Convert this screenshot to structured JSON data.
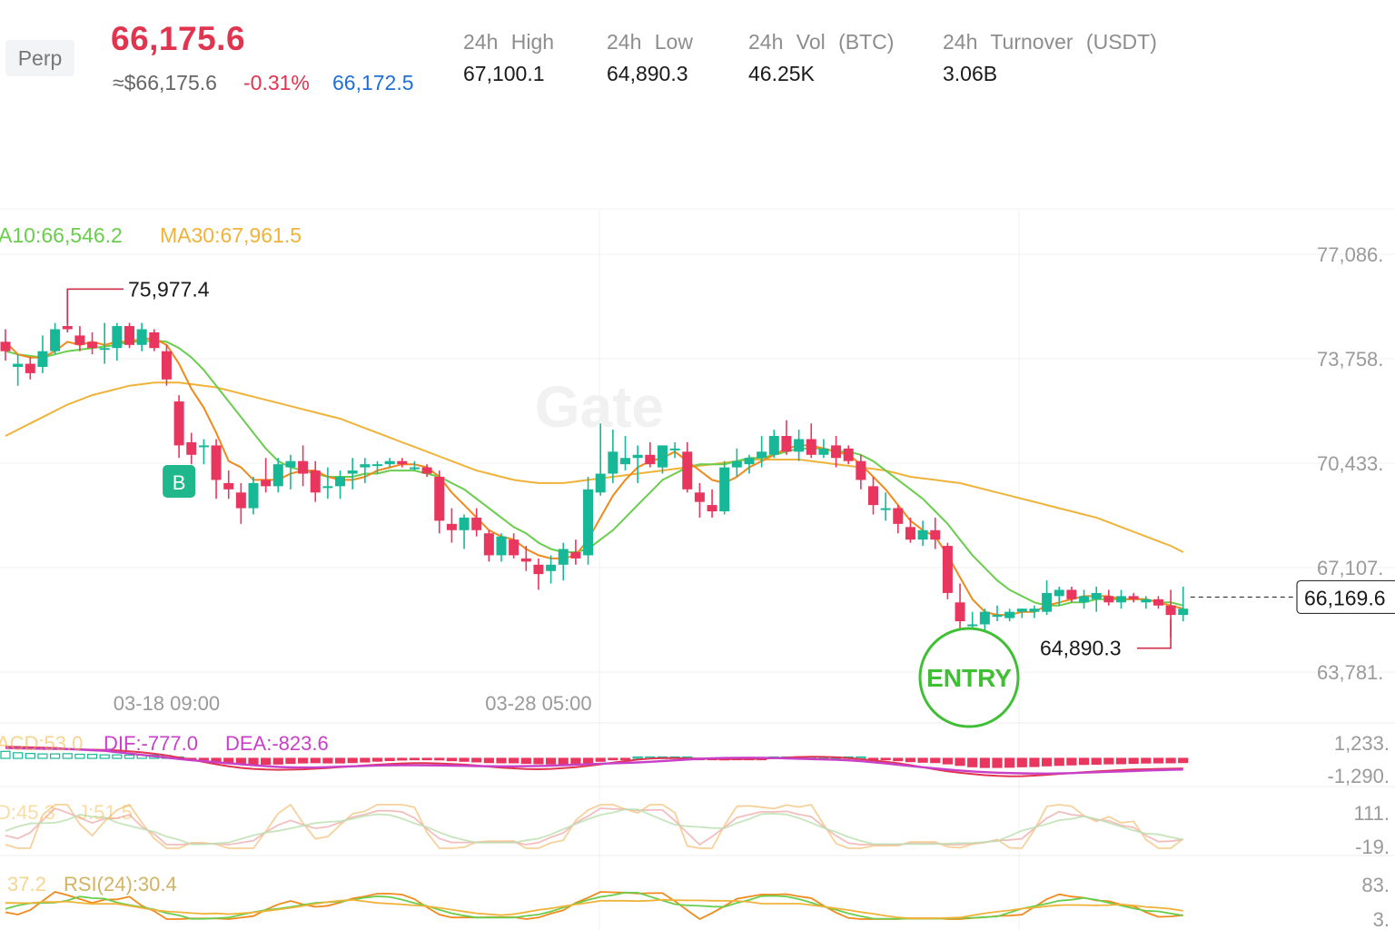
{
  "header": {
    "badge": "Perp",
    "last_price": "66,175.6",
    "usd_value": "≈$66,175.6",
    "change_pct": "-0.31%",
    "mark_price": "66,172.5",
    "stats": [
      {
        "label": "24h High",
        "value": "67,100.1"
      },
      {
        "label": "24h Low",
        "value": "64,890.3"
      },
      {
        "label": "24h Vol (BTC)",
        "value": "46.25K"
      },
      {
        "label": "24h Turnover (USDT)",
        "value": "3.06B"
      }
    ]
  },
  "colors": {
    "up": "#17b897",
    "down": "#e8365f",
    "ma10": "#6acd4d",
    "ma30": "#f0b33a",
    "ma5": "#f08a1c",
    "badge_b": "#20b78d",
    "entry": "#3fbf34",
    "dif": "#c840c8",
    "dea": "#e0344f"
  },
  "chart_data": {
    "type": "candlestick",
    "watermark": "Gate",
    "ma_labels": [
      {
        "text": "A10:66,546.2",
        "color": "#6acd4d"
      },
      {
        "text": "MA30:67,961.5",
        "color": "#f0b33a"
      }
    ],
    "y_axis_ticks": [
      "77,086.",
      "73,758.",
      "70,433.",
      "67,107.",
      "63,781."
    ],
    "y_axis_values": [
      77086,
      73758,
      70433,
      67107,
      63781
    ],
    "x_axis_ticks": [
      {
        "label": "03-18 09:00",
        "index": 13
      },
      {
        "label": "03-28 05:00",
        "index": 43
      }
    ],
    "annotations": {
      "high_label": "75,977.4",
      "high_value": 75977.4,
      "low_label": "64,890.3",
      "low_value": 64890.3,
      "current_price": "66,169.6",
      "current_value": 66169.6,
      "buy_marker": "B",
      "buy_index": 14,
      "entry_label": "ENTRY",
      "entry_index": 69
    },
    "candles": [
      {
        "o": 74300,
        "h": 74700,
        "l": 73700,
        "c": 74000
      },
      {
        "o": 73500,
        "h": 73900,
        "l": 72900,
        "c": 73600
      },
      {
        "o": 73600,
        "h": 73800,
        "l": 73100,
        "c": 73300
      },
      {
        "o": 73500,
        "h": 74500,
        "l": 73300,
        "c": 74000
      },
      {
        "o": 74000,
        "h": 74900,
        "l": 73900,
        "c": 74700
      },
      {
        "o": 74800,
        "h": 75977.4,
        "l": 74600,
        "c": 74700
      },
      {
        "o": 74500,
        "h": 74800,
        "l": 74000,
        "c": 74200
      },
      {
        "o": 74300,
        "h": 74600,
        "l": 73900,
        "c": 74100
      },
      {
        "o": 74100,
        "h": 74900,
        "l": 73600,
        "c": 74100
      },
      {
        "o": 74100,
        "h": 74900,
        "l": 73700,
        "c": 74800
      },
      {
        "o": 74800,
        "h": 74900,
        "l": 74100,
        "c": 74200
      },
      {
        "o": 74200,
        "h": 74900,
        "l": 74000,
        "c": 74700
      },
      {
        "o": 74600,
        "h": 74700,
        "l": 74000,
        "c": 74100
      },
      {
        "o": 74000,
        "h": 74200,
        "l": 72900,
        "c": 73100
      },
      {
        "o": 72400,
        "h": 72600,
        "l": 70600,
        "c": 71000
      },
      {
        "o": 71100,
        "h": 71400,
        "l": 70400,
        "c": 70700
      },
      {
        "o": 71000,
        "h": 71200,
        "l": 70400,
        "c": 71000
      },
      {
        "o": 71000,
        "h": 71200,
        "l": 69300,
        "c": 69900
      },
      {
        "o": 69800,
        "h": 70200,
        "l": 69300,
        "c": 69600
      },
      {
        "o": 69500,
        "h": 69800,
        "l": 68500,
        "c": 69000
      },
      {
        "o": 69000,
        "h": 70000,
        "l": 68800,
        "c": 69800
      },
      {
        "o": 69900,
        "h": 70600,
        "l": 69500,
        "c": 69700
      },
      {
        "o": 69700,
        "h": 70600,
        "l": 69500,
        "c": 70400
      },
      {
        "o": 70300,
        "h": 70700,
        "l": 69600,
        "c": 70500
      },
      {
        "o": 70500,
        "h": 71000,
        "l": 69700,
        "c": 70100
      },
      {
        "o": 70200,
        "h": 70500,
        "l": 69200,
        "c": 69500
      },
      {
        "o": 69700,
        "h": 70300,
        "l": 69300,
        "c": 69700
      },
      {
        "o": 69700,
        "h": 70200,
        "l": 69300,
        "c": 70000
      },
      {
        "o": 70100,
        "h": 70600,
        "l": 69600,
        "c": 70200
      },
      {
        "o": 70300,
        "h": 70600,
        "l": 69800,
        "c": 70400
      },
      {
        "o": 70400,
        "h": 70500,
        "l": 70100,
        "c": 70400
      },
      {
        "o": 70400,
        "h": 70600,
        "l": 70300,
        "c": 70500
      },
      {
        "o": 70500,
        "h": 70600,
        "l": 70300,
        "c": 70400
      },
      {
        "o": 70300,
        "h": 70500,
        "l": 70200,
        "c": 70300
      },
      {
        "o": 70300,
        "h": 70400,
        "l": 70000,
        "c": 70100
      },
      {
        "o": 70000,
        "h": 70200,
        "l": 68200,
        "c": 68600
      },
      {
        "o": 68500,
        "h": 69000,
        "l": 67900,
        "c": 68300
      },
      {
        "o": 68300,
        "h": 68800,
        "l": 67700,
        "c": 68700
      },
      {
        "o": 68700,
        "h": 69000,
        "l": 68100,
        "c": 68300
      },
      {
        "o": 68200,
        "h": 68300,
        "l": 67300,
        "c": 67500
      },
      {
        "o": 67500,
        "h": 68200,
        "l": 67300,
        "c": 68100
      },
      {
        "o": 68000,
        "h": 68200,
        "l": 67400,
        "c": 67500
      },
      {
        "o": 67400,
        "h": 67800,
        "l": 67000,
        "c": 67300
      },
      {
        "o": 67200,
        "h": 67400,
        "l": 66400,
        "c": 66900
      },
      {
        "o": 67000,
        "h": 67500,
        "l": 66600,
        "c": 67200
      },
      {
        "o": 67200,
        "h": 67900,
        "l": 66700,
        "c": 67700
      },
      {
        "o": 67600,
        "h": 68000,
        "l": 67200,
        "c": 67400
      },
      {
        "o": 67500,
        "h": 70000,
        "l": 67200,
        "c": 69600
      },
      {
        "o": 69500,
        "h": 71700,
        "l": 69400,
        "c": 70100
      },
      {
        "o": 70100,
        "h": 71500,
        "l": 69800,
        "c": 70800
      },
      {
        "o": 70400,
        "h": 71300,
        "l": 70200,
        "c": 70600
      },
      {
        "o": 70600,
        "h": 71000,
        "l": 69800,
        "c": 70700
      },
      {
        "o": 70700,
        "h": 71100,
        "l": 70300,
        "c": 70400
      },
      {
        "o": 70300,
        "h": 71000,
        "l": 70100,
        "c": 71000
      },
      {
        "o": 70900,
        "h": 71100,
        "l": 70600,
        "c": 70900
      },
      {
        "o": 70800,
        "h": 71100,
        "l": 69500,
        "c": 69600
      },
      {
        "o": 69500,
        "h": 69800,
        "l": 68700,
        "c": 69200
      },
      {
        "o": 69100,
        "h": 69600,
        "l": 68700,
        "c": 68900
      },
      {
        "o": 68900,
        "h": 70500,
        "l": 68800,
        "c": 70300
      },
      {
        "o": 70300,
        "h": 70900,
        "l": 70000,
        "c": 70500
      },
      {
        "o": 70400,
        "h": 70700,
        "l": 70100,
        "c": 70600
      },
      {
        "o": 70600,
        "h": 71300,
        "l": 70300,
        "c": 70800
      },
      {
        "o": 70700,
        "h": 71500,
        "l": 70600,
        "c": 71300
      },
      {
        "o": 71300,
        "h": 71800,
        "l": 70700,
        "c": 70800
      },
      {
        "o": 70800,
        "h": 71500,
        "l": 70500,
        "c": 71200
      },
      {
        "o": 71200,
        "h": 71700,
        "l": 70600,
        "c": 70700
      },
      {
        "o": 70700,
        "h": 71200,
        "l": 70600,
        "c": 70900
      },
      {
        "o": 71000,
        "h": 71300,
        "l": 70300,
        "c": 70600
      },
      {
        "o": 70900,
        "h": 71000,
        "l": 70400,
        "c": 70500
      },
      {
        "o": 70500,
        "h": 70700,
        "l": 69600,
        "c": 69900
      },
      {
        "o": 69700,
        "h": 70000,
        "l": 68800,
        "c": 69100
      },
      {
        "o": 69000,
        "h": 69500,
        "l": 68600,
        "c": 69000
      },
      {
        "o": 69000,
        "h": 69100,
        "l": 68200,
        "c": 68500
      },
      {
        "o": 68400,
        "h": 68700,
        "l": 67900,
        "c": 68000
      },
      {
        "o": 68000,
        "h": 68600,
        "l": 67800,
        "c": 68300
      },
      {
        "o": 68300,
        "h": 68700,
        "l": 67700,
        "c": 68000
      },
      {
        "o": 67800,
        "h": 67900,
        "l": 66100,
        "c": 66300
      },
      {
        "o": 66000,
        "h": 66600,
        "l": 65100,
        "c": 65400
      },
      {
        "o": 65300,
        "h": 65700,
        "l": 64900,
        "c": 65300
      },
      {
        "o": 65300,
        "h": 65800,
        "l": 65000,
        "c": 65700
      },
      {
        "o": 65600,
        "h": 65900,
        "l": 65400,
        "c": 65600
      },
      {
        "o": 65500,
        "h": 65800,
        "l": 65400,
        "c": 65700
      },
      {
        "o": 65700,
        "h": 65800,
        "l": 65500,
        "c": 65800
      },
      {
        "o": 65700,
        "h": 65900,
        "l": 65500,
        "c": 65800
      },
      {
        "o": 65700,
        "h": 66700,
        "l": 65600,
        "c": 66300
      },
      {
        "o": 66200,
        "h": 66500,
        "l": 65900,
        "c": 66400
      },
      {
        "o": 66400,
        "h": 66500,
        "l": 66000,
        "c": 66100
      },
      {
        "o": 66000,
        "h": 66400,
        "l": 65800,
        "c": 66200
      },
      {
        "o": 66100,
        "h": 66500,
        "l": 65700,
        "c": 66300
      },
      {
        "o": 66200,
        "h": 66400,
        "l": 65900,
        "c": 66000
      },
      {
        "o": 66000,
        "h": 66400,
        "l": 65800,
        "c": 66200
      },
      {
        "o": 66200,
        "h": 66300,
        "l": 66000,
        "c": 66100
      },
      {
        "o": 66000,
        "h": 66200,
        "l": 65800,
        "c": 66100
      },
      {
        "o": 66100,
        "h": 66200,
        "l": 65800,
        "c": 65900
      },
      {
        "o": 65900,
        "h": 66400,
        "l": 64890.3,
        "c": 65600
      },
      {
        "o": 65600,
        "h": 66500,
        "l": 65400,
        "c": 65800
      }
    ],
    "ma5": [
      74300,
      73900,
      73800,
      73800,
      74000,
      74300,
      74200,
      74300,
      74200,
      74300,
      74300,
      74400,
      74400,
      74200,
      73600,
      72800,
      72200,
      71400,
      70500,
      70300,
      69900,
      69900,
      69900,
      70100,
      70200,
      70200,
      70000,
      69900,
      69900,
      70000,
      70200,
      70300,
      70400,
      70400,
      70300,
      70000,
      69500,
      69100,
      68700,
      68300,
      68100,
      68000,
      67700,
      67500,
      67400,
      67400,
      67500,
      68000,
      68700,
      69400,
      69900,
      70300,
      70500,
      70600,
      70800,
      70500,
      70200,
      69900,
      69800,
      70000,
      70300,
      70500,
      70700,
      70900,
      71000,
      71000,
      70900,
      70800,
      70700,
      70400,
      70000,
      69600,
      69100,
      68600,
      68300,
      68100,
      67500,
      66800,
      66100,
      65700,
      65600,
      65600,
      65700,
      65700,
      65900,
      66000,
      66100,
      66200,
      66200,
      66200,
      66100,
      66100,
      66100,
      66000,
      65900,
      65800
    ],
    "ma10": [
      74000,
      73900,
      73850,
      73800,
      73900,
      74000,
      74050,
      74100,
      74150,
      74200,
      74300,
      74300,
      74350,
      74300,
      74100,
      73800,
      73400,
      72900,
      72400,
      71900,
      71400,
      70900,
      70500,
      70300,
      70200,
      70100,
      70000,
      70000,
      70000,
      70100,
      70100,
      70200,
      70200,
      70200,
      70100,
      70000,
      69800,
      69600,
      69300,
      69000,
      68700,
      68400,
      68200,
      67900,
      67700,
      67600,
      67600,
      67700,
      68000,
      68300,
      68700,
      69100,
      69500,
      69900,
      70100,
      70300,
      70400,
      70400,
      70400,
      70500,
      70600,
      70600,
      70700,
      70800,
      70900,
      70900,
      70900,
      70800,
      70800,
      70700,
      70500,
      70200,
      69900,
      69600,
      69300,
      68900,
      68500,
      68000,
      67500,
      67100,
      66700,
      66400,
      66200,
      66000,
      65900,
      65900,
      66000,
      66000,
      66100,
      66100,
      66100,
      66100,
      66100,
      66000,
      66000,
      65900
    ],
    "ma30": [
      71300,
      71500,
      71700,
      71900,
      72100,
      72300,
      72450,
      72600,
      72700,
      72800,
      72900,
      72950,
      73000,
      73000,
      73000,
      72950,
      72900,
      72850,
      72750,
      72650,
      72550,
      72450,
      72350,
      72250,
      72150,
      72050,
      71950,
      71850,
      71700,
      71550,
      71400,
      71250,
      71100,
      70950,
      70800,
      70650,
      70500,
      70350,
      70200,
      70100,
      70000,
      69900,
      69850,
      69800,
      69800,
      69800,
      69850,
      69900,
      69950,
      70000,
      70050,
      70100,
      70150,
      70200,
      70250,
      70300,
      70350,
      70400,
      70450,
      70500,
      70550,
      70550,
      70550,
      70550,
      70550,
      70500,
      70450,
      70400,
      70350,
      70300,
      70250,
      70200,
      70100,
      70000,
      69950,
      69900,
      69850,
      69800,
      69700,
      69600,
      69500,
      69400,
      69300,
      69200,
      69100,
      69000,
      68900,
      68800,
      68700,
      68550,
      68400,
      68250,
      68100,
      67950,
      67800,
      67600
    ],
    "macd_text": {
      "label": "ACD:53.0",
      "dif": "DIF:-777.0",
      "dea": "DEA:-823.6",
      "ticks": [
        "1,233.",
        "-1,290."
      ],
      "tick_values": [
        1233,
        -1290
      ]
    },
    "kdj_text": {
      "label": "D:45.3",
      "j": "J:51.5",
      "ticks": [
        "111.",
        "-19."
      ],
      "tick_values": [
        111,
        -19
      ]
    },
    "rsi_text": {
      "label": "37.2",
      "rsi24": "RSI(24):30.4",
      "ticks": [
        "83.",
        "3."
      ],
      "tick_values": [
        83,
        3
      ]
    }
  }
}
